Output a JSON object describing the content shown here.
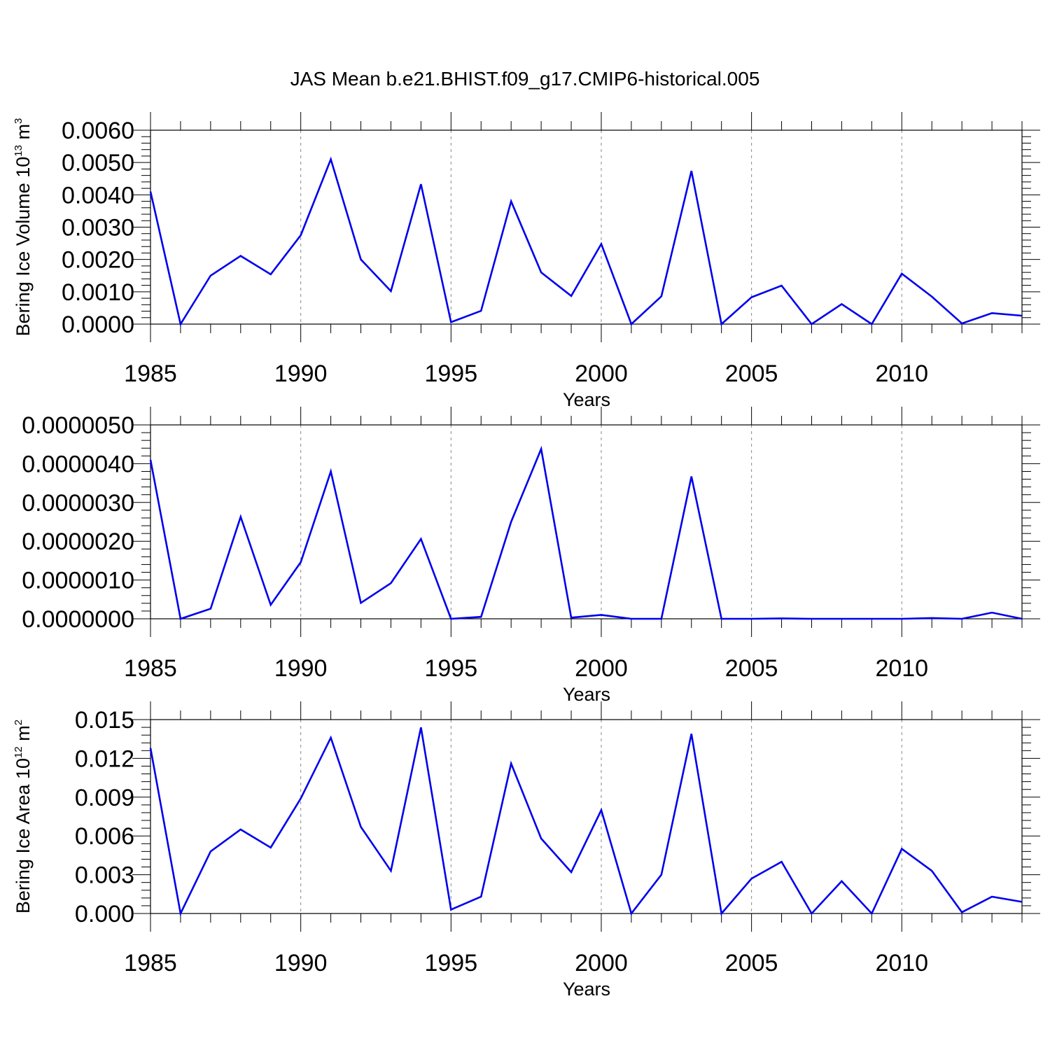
{
  "figure": {
    "title": "JAS Mean b.e21.BHIST.f09_g17.CMIP6-historical.005"
  },
  "style": {
    "line_color": "#0000ee",
    "axis_color": "#000000",
    "grid_color": "#888888"
  },
  "chart_data": [
    {
      "type": "line",
      "title": "",
      "xlabel": "Years",
      "ylabel": {
        "text": "Bering Ice Volume 10",
        "exponent": "13",
        "unit": " m",
        "unit_exponent": "3"
      },
      "xlim": [
        1985,
        2014
      ],
      "ylim": [
        0,
        0.006
      ],
      "x_ticks": [
        1985,
        1990,
        1995,
        2000,
        2005,
        2010
      ],
      "x_tick_labels": [
        "1985",
        "1990",
        "1995",
        "2000",
        "2005",
        "2010"
      ],
      "y_ticks": [
        0,
        0.001,
        0.002,
        0.003,
        0.004,
        0.005,
        0.006
      ],
      "y_tick_labels": [
        "0.0000",
        "0.0010",
        "0.0020",
        "0.0030",
        "0.0040",
        "0.0050",
        "0.0060"
      ],
      "grid": "vertical dashed at major x ticks",
      "series": [
        {
          "x": [
            1985,
            1986,
            1987,
            1988,
            1989,
            1990,
            1991,
            1992,
            1993,
            1994,
            1995,
            1996,
            1997,
            1998,
            1999,
            2000,
            2001,
            2002,
            2003,
            2004,
            2005,
            2006,
            2007,
            2008,
            2009,
            2010,
            2011,
            2012,
            2013,
            2014
          ],
          "values": [
            0.0041,
            0.0,
            0.0015,
            0.00211,
            0.00154,
            0.00275,
            0.0051,
            0.002,
            0.00102,
            0.00433,
            6e-05,
            0.00041,
            0.0038,
            0.0016,
            0.00087,
            0.00248,
            0.0,
            0.00086,
            0.00474,
            0.0,
            0.00083,
            0.00119,
            0.0,
            0.00062,
            0.0,
            0.00156,
            0.00085,
            2e-05,
            0.00034,
            0.00026
          ]
        }
      ]
    },
    {
      "type": "line",
      "title": "",
      "xlabel": "Years",
      "ylabel": null,
      "xlim": [
        1985,
        2014
      ],
      "ylim": [
        0,
        5e-06
      ],
      "x_ticks": [
        1985,
        1990,
        1995,
        2000,
        2005,
        2010
      ],
      "x_tick_labels": [
        "1985",
        "1990",
        "1995",
        "2000",
        "2005",
        "2010"
      ],
      "y_ticks": [
        0,
        1e-06,
        2e-06,
        3e-06,
        4e-06,
        5e-06
      ],
      "y_tick_labels": [
        "0.0000000",
        "0.0000010",
        "0.0000020",
        "0.0000030",
        "0.0000040",
        "0.0000050"
      ],
      "grid": "vertical dashed at major x ticks",
      "series": [
        {
          "x": [
            1985,
            1986,
            1987,
            1988,
            1989,
            1990,
            1991,
            1992,
            1993,
            1994,
            1995,
            1996,
            1997,
            1998,
            1999,
            2000,
            2001,
            2002,
            2003,
            2004,
            2005,
            2006,
            2007,
            2008,
            2009,
            2010,
            2011,
            2012,
            2013,
            2014
          ],
          "values": [
            4.1e-06,
            0.0,
            2.6e-07,
            2.63e-06,
            3.6e-07,
            1.46e-06,
            3.8e-06,
            4.1e-07,
            9.2e-07,
            2.06e-06,
            0.0,
            5e-08,
            2.5e-06,
            4.38e-06,
            3e-08,
            1e-07,
            0.0,
            0.0,
            3.67e-06,
            0.0,
            0.0,
            1e-08,
            0.0,
            0.0,
            0.0,
            0.0,
            2e-08,
            0.0,
            1.6e-07,
            0.0
          ]
        }
      ]
    },
    {
      "type": "line",
      "title": "",
      "xlabel": "Years",
      "ylabel": {
        "text": "Bering Ice Area 10",
        "exponent": "12",
        "unit": " m",
        "unit_exponent": "2"
      },
      "xlim": [
        1985,
        2014
      ],
      "ylim": [
        0,
        0.015
      ],
      "x_ticks": [
        1985,
        1990,
        1995,
        2000,
        2005,
        2010
      ],
      "x_tick_labels": [
        "1985",
        "1990",
        "1995",
        "2000",
        "2005",
        "2010"
      ],
      "y_ticks": [
        0,
        0.003,
        0.006,
        0.009,
        0.012,
        0.015
      ],
      "y_tick_labels": [
        "0.000",
        "0.003",
        "0.006",
        "0.009",
        "0.012",
        "0.015"
      ],
      "grid": "vertical dashed at major x ticks",
      "series": [
        {
          "x": [
            1985,
            1986,
            1987,
            1988,
            1989,
            1990,
            1991,
            1992,
            1993,
            1994,
            1995,
            1996,
            1997,
            1998,
            1999,
            2000,
            2001,
            2002,
            2003,
            2004,
            2005,
            2006,
            2007,
            2008,
            2009,
            2010,
            2011,
            2012,
            2013,
            2014
          ],
          "values": [
            0.0128,
            0.0,
            0.0048,
            0.0065,
            0.0051,
            0.0089,
            0.0136,
            0.0067,
            0.0033,
            0.0144,
            0.0003,
            0.0013,
            0.0116,
            0.0058,
            0.0032,
            0.008,
            0.0,
            0.003,
            0.0139,
            0.0,
            0.0027,
            0.004,
            0.0,
            0.0025,
            0.0,
            0.005,
            0.0033,
            0.0001,
            0.0013,
            0.0009
          ]
        }
      ]
    }
  ]
}
